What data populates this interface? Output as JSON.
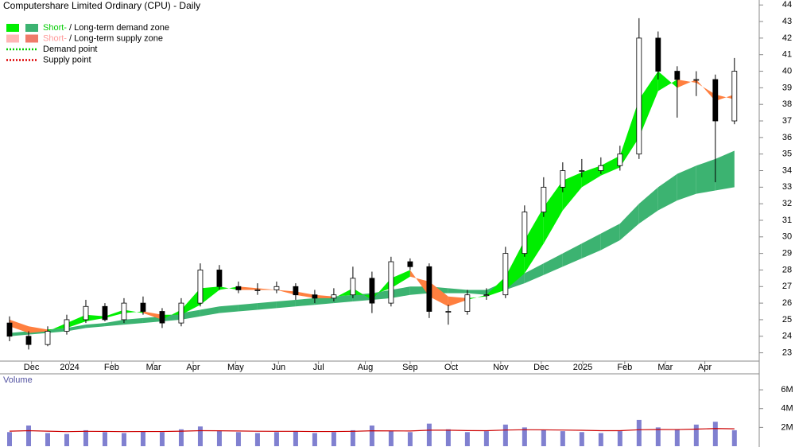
{
  "chart_data": {
    "type": "ohlc",
    "title": "Computershare Limited Ordinary (CPU) - Daily",
    "legend": [
      {
        "swatches": [
          "#00ee00",
          "#3cb371"
        ],
        "parts": [
          {
            "text": "Short-",
            "color": "#00cc00"
          },
          {
            "text": " / Long-term demand zone",
            "color": "#000000"
          }
        ]
      },
      {
        "swatches": [
          "#ffb6b6",
          "#f07a6a"
        ],
        "parts": [
          {
            "text": "Short-",
            "color": "#ff9a9a"
          },
          {
            "text": " / Long-term supply zone",
            "color": "#000000"
          }
        ]
      },
      {
        "dotted": "#00cc00",
        "parts": [
          {
            "text": "Demand point",
            "color": "#000000"
          }
        ]
      },
      {
        "dotted": "#dd0000",
        "parts": [
          {
            "text": "Supply point",
            "color": "#000000"
          }
        ]
      }
    ],
    "x": [
      1,
      3,
      5,
      7,
      9,
      11,
      13,
      15,
      17,
      19,
      21,
      23,
      25,
      27,
      29,
      31,
      33,
      35,
      37,
      39,
      41,
      43,
      45,
      47,
      49,
      51,
      53,
      55,
      57,
      59,
      61,
      63,
      65,
      67,
      69,
      71,
      73,
      75,
      77
    ],
    "xlim": [
      0,
      79.6
    ],
    "xticks": [
      {
        "value": 3.3,
        "label": "Dec"
      },
      {
        "value": 7.3,
        "label": "2024"
      },
      {
        "value": 11.7,
        "label": "Feb"
      },
      {
        "value": 16.1,
        "label": "Mar"
      },
      {
        "value": 20.25,
        "label": "Apr"
      },
      {
        "value": 24.7,
        "label": "May"
      },
      {
        "value": 29.2,
        "label": "Jun"
      },
      {
        "value": 33.4,
        "label": "Jul"
      },
      {
        "value": 38.3,
        "label": "Aug"
      },
      {
        "value": 43,
        "label": "Sep"
      },
      {
        "value": 47.3,
        "label": "Oct"
      },
      {
        "value": 52.5,
        "label": "Nov"
      },
      {
        "value": 56.75,
        "label": "Dec"
      },
      {
        "value": 61.1,
        "label": "2025"
      },
      {
        "value": 65.5,
        "label": "Feb"
      },
      {
        "value": 69.75,
        "label": "Mar"
      },
      {
        "value": 73.9,
        "label": "Apr"
      }
    ],
    "ylim": [
      22.5,
      44.3
    ],
    "yticks": [
      23,
      24,
      25,
      26,
      27,
      28,
      29,
      30,
      31,
      32,
      33,
      34,
      35,
      36,
      37,
      38,
      39,
      40,
      41,
      42,
      43,
      44
    ],
    "open": [
      24.8,
      24.0,
      23.5,
      24.3,
      25.0,
      25.8,
      25.0,
      26.0,
      25.5,
      24.8,
      26.0,
      28.0,
      27.0,
      26.8,
      26.8,
      27.0,
      26.5,
      26.3,
      26.5,
      27.5,
      26.0,
      28.5,
      28.2,
      25.5,
      25.5,
      26.5,
      26.5,
      29.0,
      31.5,
      33.0,
      34.0,
      34.0,
      34.3,
      35.0,
      42.0,
      40.0,
      39.5,
      39.5,
      37.0
    ],
    "high": [
      25.2,
      24.3,
      24.6,
      25.3,
      26.2,
      26.0,
      26.3,
      26.4,
      25.7,
      26.3,
      28.4,
      28.3,
      27.3,
      27.2,
      27.3,
      27.2,
      26.8,
      26.9,
      28.2,
      27.9,
      28.8,
      28.7,
      28.4,
      25.9,
      26.8,
      26.9,
      29.4,
      31.9,
      33.6,
      34.5,
      34.7,
      34.8,
      35.5,
      43.2,
      42.4,
      40.3,
      40.0,
      39.8,
      40.8
    ],
    "low": [
      23.7,
      23.2,
      23.4,
      24.1,
      24.8,
      24.9,
      24.8,
      25.3,
      24.5,
      24.6,
      25.8,
      26.8,
      26.6,
      26.5,
      26.6,
      26.2,
      26.0,
      26.1,
      26.3,
      25.4,
      25.8,
      28.0,
      25.1,
      24.7,
      25.3,
      26.2,
      26.3,
      28.8,
      31.2,
      32.7,
      33.6,
      33.8,
      34.0,
      34.7,
      39.5,
      37.2,
      38.5,
      33.3,
      36.8
    ],
    "close": [
      24.0,
      23.5,
      24.3,
      25.0,
      25.8,
      25.0,
      26.0,
      25.5,
      24.8,
      26.0,
      28.0,
      27.0,
      26.8,
      26.8,
      27.0,
      26.5,
      26.3,
      26.5,
      27.5,
      26.0,
      28.5,
      28.2,
      25.5,
      25.5,
      26.5,
      26.5,
      29.0,
      31.5,
      33.0,
      34.0,
      34.0,
      34.3,
      35.0,
      42.0,
      40.0,
      39.5,
      39.5,
      37.0,
      40.0
    ],
    "short_zone": {
      "demand_color": "#00ee00",
      "supply_color": "#ff7f3f",
      "fast": [
        24.6,
        24.2,
        24.3,
        24.8,
        25.3,
        25.2,
        25.6,
        25.4,
        25.0,
        25.6,
        26.9,
        27.0,
        26.8,
        26.8,
        26.8,
        26.5,
        26.3,
        26.3,
        26.9,
        26.2,
        27.5,
        28.0,
        26.4,
        25.8,
        26.2,
        26.5,
        27.6,
        29.8,
        31.8,
        33.4,
        33.9,
        34.3,
        34.9,
        38.3,
        40.0,
        39.0,
        39.5,
        38.2,
        38.6
      ],
      "slow": [
        25.0,
        24.6,
        24.4,
        24.5,
        24.9,
        25.1,
        25.4,
        25.5,
        25.3,
        25.3,
        25.9,
        26.8,
        27.0,
        26.9,
        26.8,
        26.7,
        26.5,
        26.4,
        26.5,
        26.5,
        26.9,
        27.6,
        27.3,
        26.4,
        26.3,
        26.4,
        26.8,
        27.8,
        29.6,
        31.6,
        33.0,
        33.7,
        34.2,
        36.0,
        38.8,
        39.5,
        39.3,
        38.6,
        38.3
      ]
    },
    "long_zone": {
      "demand_color": "#3cb371",
      "supply_color": "#f07a6a",
      "fast": [
        24.2,
        24.3,
        24.4,
        24.5,
        24.7,
        24.8,
        25.0,
        25.1,
        25.2,
        25.4,
        25.6,
        25.8,
        25.9,
        26.0,
        26.1,
        26.2,
        26.3,
        26.4,
        26.5,
        26.6,
        26.8,
        27.0,
        27.0,
        26.9,
        26.8,
        26.8,
        27.3,
        27.8,
        28.4,
        29.0,
        29.6,
        30.2,
        30.8,
        32.0,
        33.0,
        33.8,
        34.3,
        34.7,
        35.2
      ],
      "slow": [
        24.0,
        24.1,
        24.2,
        24.3,
        24.5,
        24.6,
        24.7,
        24.8,
        24.9,
        25.0,
        25.2,
        25.4,
        25.5,
        25.6,
        25.7,
        25.8,
        25.9,
        26.0,
        26.1,
        26.2,
        26.3,
        26.5,
        26.6,
        26.6,
        26.6,
        26.5,
        26.8,
        27.2,
        27.7,
        28.2,
        28.7,
        29.2,
        29.8,
        30.8,
        31.6,
        32.2,
        32.6,
        32.8,
        33.0
      ]
    },
    "volume_title": "Volume",
    "volume_color": "#8080d0",
    "volume_ma_color": "#cc0000",
    "volume": [
      1500000,
      2200000,
      1400000,
      1300000,
      1700000,
      1500000,
      1400000,
      1600000,
      1500000,
      1800000,
      2100000,
      1600000,
      1500000,
      1400000,
      1500000,
      1600000,
      1400000,
      1500000,
      1700000,
      2200000,
      1600000,
      1500000,
      2400000,
      1800000,
      1500000,
      1600000,
      2300000,
      2000000,
      1700000,
      1600000,
      1500000,
      1400000,
      1600000,
      2800000,
      2000000,
      1800000,
      2300000,
      2600000,
      1700000
    ],
    "volume_ma": [
      1600000,
      1650000,
      1600000,
      1550000,
      1580000,
      1570000,
      1550000,
      1560000,
      1560000,
      1600000,
      1650000,
      1640000,
      1620000,
      1590000,
      1580000,
      1580000,
      1560000,
      1560000,
      1580000,
      1640000,
      1630000,
      1620000,
      1700000,
      1700000,
      1660000,
      1650000,
      1720000,
      1750000,
      1740000,
      1720000,
      1690000,
      1650000,
      1650000,
      1750000,
      1780000,
      1770000,
      1820000,
      1880000,
      1850000
    ],
    "vylim": [
      0,
      7700000
    ],
    "vyticks": [
      {
        "value": 2000000,
        "label": "2M"
      },
      {
        "value": 4000000,
        "label": "4M"
      },
      {
        "value": 6000000,
        "label": "6M"
      }
    ]
  }
}
